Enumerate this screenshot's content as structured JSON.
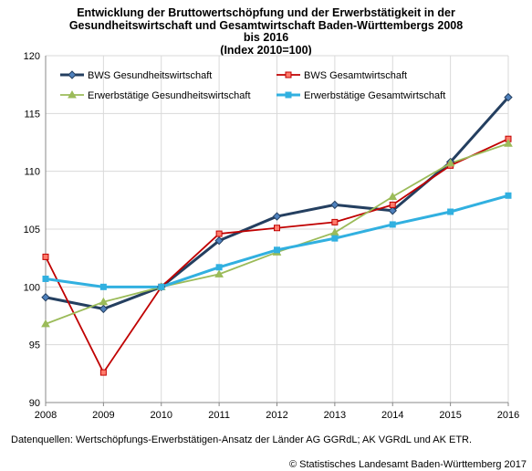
{
  "title_lines": [
    "Entwicklung der Bruttowertschöpfung und der Erwerbstätigkeit in der",
    "Gesundheitswirtschaft und Gesamtwirtschaft Baden-Württembergs 2008",
    "bis 2016",
    "(Index 2010=100)"
  ],
  "footer": {
    "source": "Datenquellen: Wertschöpfungs-Erwerbstätigen-Ansatz der Länder AG GGRdL; AK VGRdL und AK ETR.",
    "copyright": "© Statistisches Landesamt Baden-Württemberg 2017"
  },
  "chart_data": {
    "type": "line",
    "x": [
      "2008",
      "2009",
      "2010",
      "2011",
      "2012",
      "2013",
      "2014",
      "2015",
      "2016"
    ],
    "ylim": [
      90,
      120
    ],
    "yticks": [
      90,
      95,
      100,
      105,
      110,
      115,
      120
    ],
    "grid": true,
    "legend_position": "top",
    "series": [
      {
        "name": "BWS Gesundheitswirtschaft",
        "color": "#243f60",
        "marker": "diamond",
        "values": [
          99.1,
          98.1,
          100,
          104.0,
          106.1,
          107.1,
          106.6,
          110.8,
          116.4
        ]
      },
      {
        "name": "BWS Gesamtwirtschaft",
        "color": "#c00000",
        "marker": "square",
        "values": [
          102.6,
          92.6,
          100,
          104.6,
          105.1,
          105.6,
          107.1,
          110.5,
          112.8
        ]
      },
      {
        "name": "Erwerbstätige Gesundheitswirtschaft",
        "color": "#9bbb59",
        "marker": "triangle",
        "values": [
          96.8,
          98.7,
          100,
          101.1,
          103.0,
          104.7,
          107.8,
          110.7,
          112.4
        ]
      },
      {
        "name": "Erwerbstätige Gesamtwirtschaft",
        "color": "#31b0e0",
        "marker": "square",
        "values": [
          100.7,
          100.0,
          100,
          101.7,
          103.2,
          104.2,
          105.4,
          106.5,
          107.9
        ]
      }
    ]
  }
}
